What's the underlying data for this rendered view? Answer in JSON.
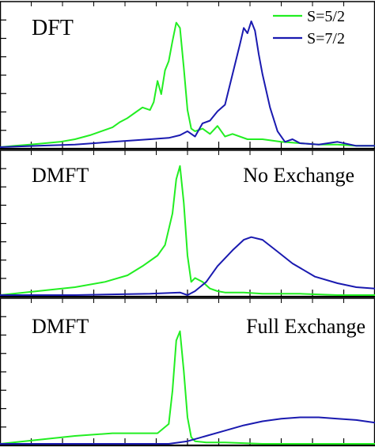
{
  "colors": {
    "green": "#22ee22",
    "blue": "#1a1ab0",
    "axis": "#000000",
    "background": "#ffffff"
  },
  "legend": {
    "placement": "top-right",
    "items": [
      {
        "label": "S=5/2",
        "color": "#22ee22"
      },
      {
        "label": "S=7/2",
        "color": "#1a1ab0"
      }
    ]
  },
  "panels": [
    {
      "label": "DFT",
      "sublabel": ""
    },
    {
      "label": "DMFT",
      "sublabel": "No Exchange"
    },
    {
      "label": "DMFT",
      "sublabel": "Full Exchange"
    }
  ],
  "chart_data": [
    {
      "type": "line",
      "title": "DFT",
      "xlabel": "",
      "ylabel": "",
      "xlim": [
        0,
        1
      ],
      "ylim": [
        0,
        1
      ],
      "grid": false,
      "series": [
        {
          "name": "S=5/2",
          "color": "#22ee22",
          "x": [
            0,
            0.04,
            0.08,
            0.12,
            0.16,
            0.2,
            0.24,
            0.27,
            0.3,
            0.32,
            0.34,
            0.36,
            0.38,
            0.4,
            0.41,
            0.42,
            0.43,
            0.44,
            0.45,
            0.46,
            0.47,
            0.48,
            0.49,
            0.5,
            0.51,
            0.52,
            0.54,
            0.56,
            0.58,
            0.6,
            0.62,
            0.66,
            0.7,
            0.75,
            0.8,
            0.85,
            0.9,
            0.95,
            1.0
          ],
          "y": [
            0.0,
            0.01,
            0.02,
            0.03,
            0.04,
            0.06,
            0.09,
            0.12,
            0.15,
            0.19,
            0.22,
            0.26,
            0.3,
            0.28,
            0.34,
            0.5,
            0.4,
            0.58,
            0.65,
            0.8,
            0.94,
            0.9,
            0.6,
            0.28,
            0.14,
            0.12,
            0.14,
            0.1,
            0.16,
            0.08,
            0.1,
            0.06,
            0.06,
            0.04,
            0.03,
            0.02,
            0.02,
            0.01,
            0.01
          ]
        },
        {
          "name": "S=7/2",
          "color": "#1a1ab0",
          "x": [
            0,
            0.1,
            0.2,
            0.3,
            0.35,
            0.4,
            0.45,
            0.48,
            0.5,
            0.52,
            0.54,
            0.56,
            0.58,
            0.6,
            0.62,
            0.64,
            0.65,
            0.66,
            0.67,
            0.68,
            0.69,
            0.7,
            0.72,
            0.74,
            0.76,
            0.78,
            0.8,
            0.85,
            0.9,
            0.95,
            1.0
          ],
          "y": [
            0.0,
            0.01,
            0.02,
            0.04,
            0.05,
            0.06,
            0.07,
            0.09,
            0.12,
            0.08,
            0.18,
            0.2,
            0.27,
            0.32,
            0.55,
            0.78,
            0.9,
            0.86,
            0.95,
            0.88,
            0.7,
            0.55,
            0.3,
            0.12,
            0.04,
            0.06,
            0.03,
            0.02,
            0.04,
            0.01,
            0.01
          ]
        }
      ]
    },
    {
      "type": "line",
      "title": "DMFT",
      "subtitle": "No Exchange",
      "xlabel": "",
      "ylabel": "",
      "xlim": [
        0,
        1
      ],
      "ylim": [
        0,
        1
      ],
      "grid": false,
      "series": [
        {
          "name": "S=5/2",
          "color": "#22ee22",
          "x": [
            0,
            0.1,
            0.2,
            0.28,
            0.34,
            0.38,
            0.42,
            0.44,
            0.46,
            0.47,
            0.48,
            0.49,
            0.5,
            0.51,
            0.52,
            0.54,
            0.56,
            0.58,
            0.6,
            0.65,
            0.7,
            0.8,
            0.9,
            1.0
          ],
          "y": [
            0.0,
            0.03,
            0.06,
            0.1,
            0.15,
            0.22,
            0.3,
            0.38,
            0.62,
            0.88,
            0.98,
            0.7,
            0.3,
            0.1,
            0.13,
            0.1,
            0.05,
            0.03,
            0.02,
            0.02,
            0.01,
            0.01,
            0.0,
            0.0
          ]
        },
        {
          "name": "S=7/2",
          "color": "#1a1ab0",
          "x": [
            0,
            0.2,
            0.4,
            0.48,
            0.5,
            0.52,
            0.55,
            0.58,
            0.62,
            0.65,
            0.67,
            0.7,
            0.74,
            0.78,
            0.84,
            0.9,
            0.95,
            1.0
          ],
          "y": [
            0.0,
            0.0,
            0.01,
            0.02,
            0.0,
            0.03,
            0.1,
            0.22,
            0.34,
            0.42,
            0.44,
            0.42,
            0.33,
            0.24,
            0.14,
            0.09,
            0.06,
            0.05
          ]
        }
      ]
    },
    {
      "type": "line",
      "title": "DMFT",
      "subtitle": "Full Exchange",
      "xlabel": "",
      "ylabel": "",
      "xlim": [
        0,
        1
      ],
      "ylim": [
        0,
        1
      ],
      "grid": false,
      "series": [
        {
          "name": "S=5/2",
          "color": "#22ee22",
          "x": [
            0,
            0.1,
            0.2,
            0.3,
            0.38,
            0.42,
            0.45,
            0.46,
            0.47,
            0.48,
            0.49,
            0.5,
            0.51,
            0.52,
            0.55,
            0.6,
            0.7,
            0.8,
            0.9,
            1.0
          ],
          "y": [
            0.0,
            0.03,
            0.06,
            0.08,
            0.08,
            0.08,
            0.15,
            0.4,
            0.78,
            0.85,
            0.55,
            0.2,
            0.05,
            0.02,
            0.01,
            0.01,
            0.0,
            0.0,
            0.0,
            0.0
          ]
        },
        {
          "name": "S=7/2",
          "color": "#1a1ab0",
          "x": [
            0,
            0.2,
            0.4,
            0.45,
            0.5,
            0.55,
            0.6,
            0.65,
            0.7,
            0.75,
            0.8,
            0.85,
            0.9,
            0.95,
            1.0
          ],
          "y": [
            0.0,
            0.0,
            0.0,
            0.0,
            0.02,
            0.06,
            0.1,
            0.14,
            0.17,
            0.19,
            0.2,
            0.2,
            0.19,
            0.18,
            0.16
          ]
        }
      ]
    }
  ]
}
